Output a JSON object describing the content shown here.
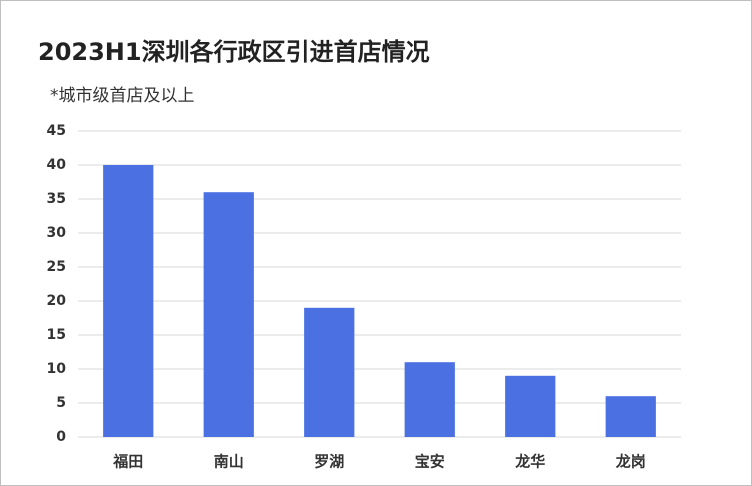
{
  "chart_data": {
    "type": "bar",
    "title": "2023H1深圳各行政区引进首店情况",
    "subtitle": "*城市级首店及以上",
    "categories": [
      "福田",
      "南山",
      "罗湖",
      "宝安",
      "龙华",
      "龙岗"
    ],
    "values": [
      40,
      36,
      19,
      11,
      9,
      6
    ],
    "color": "#4a70e2",
    "ylim": [
      0,
      45
    ],
    "yticks": [
      0,
      5,
      10,
      15,
      20,
      25,
      30,
      35,
      40,
      45
    ],
    "grid": true
  }
}
